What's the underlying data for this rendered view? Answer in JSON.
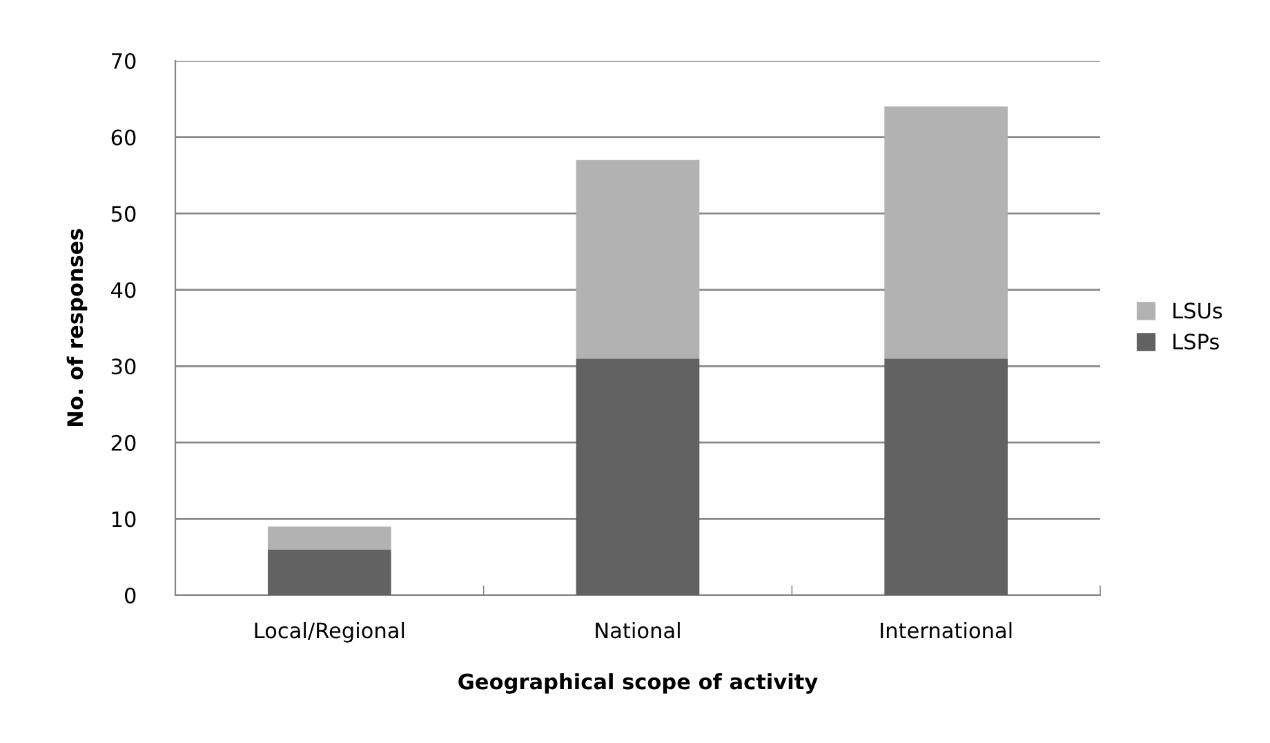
{
  "chart_data": {
    "type": "bar",
    "xlabel": "Geographical scope of activity",
    "ylabel": "No. of responses",
    "categories": [
      "Local/Regional",
      "National",
      "International"
    ],
    "series": [
      {
        "name": "LSPs",
        "color": "#626262",
        "values": [
          6,
          31,
          31
        ]
      },
      {
        "name": "LSUs",
        "color": "#b2b2b2",
        "values": [
          3,
          26,
          33
        ]
      }
    ],
    "stacked": true,
    "ylim": [
      0,
      70
    ],
    "yticks": [
      0,
      10,
      20,
      30,
      40,
      50,
      60,
      70
    ],
    "grid": "y",
    "legend": "right"
  }
}
